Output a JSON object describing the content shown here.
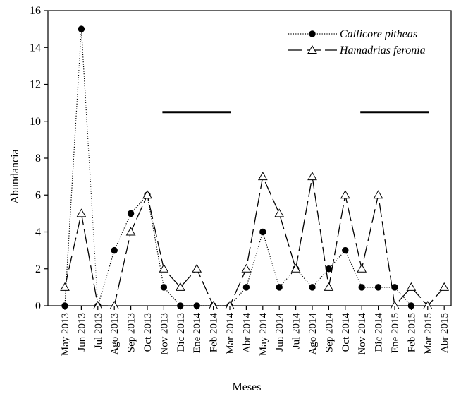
{
  "chart_data": {
    "type": "line",
    "xlabel": "Meses",
    "ylabel": "Abundancia",
    "ylim": [
      0,
      16
    ],
    "yticks": [
      0,
      2,
      4,
      6,
      8,
      10,
      12,
      14,
      16
    ],
    "grid": false,
    "legend_position": "top-right",
    "categories": [
      "May 2013",
      "Jun 2013",
      "Jul 2013",
      "Ago 2013",
      "Sep 2013",
      "Oct 2013",
      "Nov 2013",
      "Dic 2013",
      "Ene 2014",
      "Feb 2014",
      "Mar 2014",
      "Abr 2014",
      "May 2014",
      "Jun 2014",
      "Jul 2014",
      "Ago 2014",
      "Sep 2014",
      "Oct 2014",
      "Nov 2014",
      "Dic 2014",
      "Ene 2015",
      "Feb 2015",
      "Mar 2015",
      "Abr 2015"
    ],
    "series": [
      {
        "name": "Callicore pitheas",
        "line_style": "dotted",
        "marker": "filled-circle",
        "values": [
          0,
          15,
          0,
          3,
          5,
          6,
          1,
          0,
          0,
          0,
          0,
          1,
          4,
          1,
          2,
          1,
          2,
          3,
          1,
          1,
          1,
          0,
          null,
          null
        ]
      },
      {
        "name": "Hamadrias feronia",
        "line_style": "dashed",
        "marker": "open-triangle",
        "values": [
          1,
          5,
          0,
          0,
          4,
          6,
          2,
          1,
          2,
          0,
          0,
          2,
          7,
          5,
          2,
          7,
          1,
          6,
          2,
          6,
          0,
          1,
          0,
          1
        ]
      }
    ],
    "annotations": [
      {
        "type": "horizontal-segment",
        "y": 10.5,
        "from": "Nov 2013",
        "to": "Mar 2014"
      },
      {
        "type": "horizontal-segment",
        "y": 10.5,
        "from": "Nov 2014",
        "to": "Mar 2015"
      }
    ]
  }
}
